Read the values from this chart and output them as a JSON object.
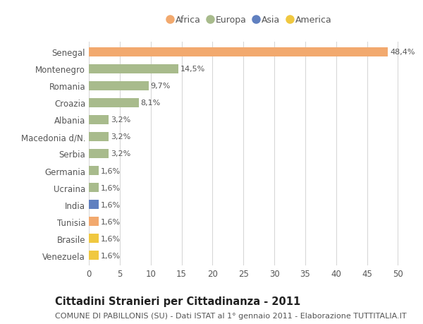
{
  "countries": [
    "Senegal",
    "Montenegro",
    "Romania",
    "Croazia",
    "Albania",
    "Macedonia d/N.",
    "Serbia",
    "Germania",
    "Ucraina",
    "India",
    "Tunisia",
    "Brasile",
    "Venezuela"
  ],
  "values": [
    48.4,
    14.5,
    9.7,
    8.1,
    3.2,
    3.2,
    3.2,
    1.6,
    1.6,
    1.6,
    1.6,
    1.6,
    1.6
  ],
  "labels": [
    "48,4%",
    "14,5%",
    "9,7%",
    "8,1%",
    "3,2%",
    "3,2%",
    "3,2%",
    "1,6%",
    "1,6%",
    "1,6%",
    "1,6%",
    "1,6%",
    "1,6%"
  ],
  "continents": [
    "Africa",
    "Europa",
    "Europa",
    "Europa",
    "Europa",
    "Europa",
    "Europa",
    "Europa",
    "Europa",
    "Asia",
    "Africa",
    "America",
    "America"
  ],
  "colors": {
    "Africa": "#F2A96E",
    "Europa": "#A8BB8C",
    "Asia": "#6080C0",
    "America": "#F0C840"
  },
  "legend_order": [
    "Africa",
    "Europa",
    "Asia",
    "America"
  ],
  "xlim": [
    0,
    52
  ],
  "xticks": [
    0,
    5,
    10,
    15,
    20,
    25,
    30,
    35,
    40,
    45,
    50
  ],
  "title": "Cittadini Stranieri per Cittadinanza - 2011",
  "subtitle": "COMUNE DI PABILLONIS (SU) - Dati ISTAT al 1° gennaio 2011 - Elaborazione TUTTITALIA.IT",
  "background_color": "#ffffff",
  "grid_color": "#d8d8d8",
  "bar_height": 0.55,
  "label_fontsize": 8,
  "tick_label_fontsize": 8.5,
  "title_fontsize": 10.5,
  "subtitle_fontsize": 8
}
